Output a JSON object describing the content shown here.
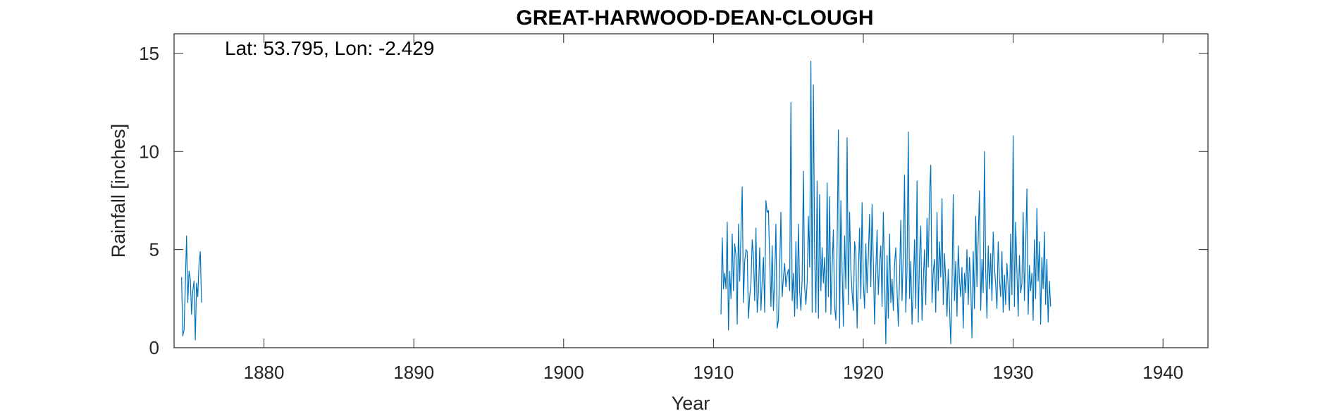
{
  "chart_data": {
    "type": "line",
    "title": "GREAT-HARWOOD-DEAN-CLOUGH",
    "xlabel": "Year",
    "ylabel": "Rainfall [inches]",
    "annotation": "Lat: 53.795, Lon: -2.429",
    "xlim": [
      1874,
      1943
    ],
    "ylim": [
      0,
      16
    ],
    "xticks": [
      1880,
      1890,
      1900,
      1910,
      1920,
      1930,
      1940
    ],
    "yticks": [
      0,
      5,
      10,
      15
    ],
    "grid": false,
    "color": "#0072BD",
    "series": [
      {
        "segments": [
          {
            "start": 1874.5,
            "step": 0.0833333,
            "values": [
              3.6,
              0.6,
              0.9,
              3.2,
              5.7,
              2.3,
              3.9,
              3.5,
              1.7,
              2.9,
              3.4,
              0.4,
              3.3,
              2.6,
              4.3,
              4.9,
              2.3
            ]
          },
          {
            "start": 1910.5,
            "step": 0.0833333,
            "values": [
              1.7,
              5.6,
              3.0,
              3.8,
              3.0,
              6.4,
              0.9,
              3.9,
              2.5,
              5.8,
              2.9,
              5.3,
              4.7,
              1.2,
              6.3,
              3.4,
              5.8,
              8.2,
              2.3,
              4.4,
              5.0,
              4.9,
              1.5,
              2.6,
              3.3,
              5.5,
              4.7,
              2.4,
              6.1,
              1.8,
              2.8,
              5.1,
              1.9,
              3.4,
              4.6,
              1.8,
              7.5,
              6.9,
              7.0,
              4.5,
              2.1,
              5.2,
              1.9,
              3.5,
              6.3,
              1.0,
              1.4,
              4.1,
              6.9,
              2.6,
              3.6,
              4.3,
              3.1,
              3.7,
              4.0,
              2.9,
              12.5,
              2.4,
              3.8,
              1.6,
              5.4,
              2.0,
              6.3,
              2.9,
              1.9,
              3.5,
              9.0,
              3.1,
              2.2,
              3.3,
              6.7,
              4.1,
              14.6,
              1.8,
              13.4,
              4.8,
              1.8,
              8.5,
              1.5,
              7.8,
              2.9,
              5.1,
              3.3,
              4.6,
              1.8,
              8.4,
              2.6,
              7.7,
              1.7,
              4.1,
              6.0,
              2.1,
              1.4,
              5.2,
              11.1,
              1.0,
              7.5,
              3.9,
              1.1,
              5.7,
              3.0,
              10.7,
              2.2,
              6.9,
              4.0,
              2.8,
              1.9,
              5.4,
              4.9,
              1.0,
              3.7,
              6.1,
              2.5,
              7.4,
              3.3,
              2.0,
              5.3,
              2.8,
              4.7,
              6.8,
              3.1,
              7.3,
              4.4,
              1.2,
              3.9,
              6.0,
              2.7,
              4.3,
              5.2,
              2.1,
              6.9,
              3.8,
              0.2,
              4.7,
              1.5,
              5.8,
              2.3,
              3.5,
              1.9,
              4.2,
              5.1,
              2.9,
              1.1,
              3.6,
              6.5,
              2.4,
              4.8,
              8.8,
              1.8,
              4.0,
              11.0,
              2.5,
              4.4,
              1.2,
              3.1,
              5.5,
              2.0,
              8.5,
              1.3,
              4.6,
              6.2,
              1.4,
              3.4,
              5.0,
              2.2,
              6.6,
              4.1,
              7.7,
              9.3,
              2.3,
              3.9,
              4.5,
              1.8,
              6.9,
              2.9,
              5.4,
              3.6,
              7.6,
              2.2,
              4.8,
              3.4,
              1.6,
              4.0,
              2.1,
              0.2,
              3.1,
              7.8,
              2.4,
              4.4,
              1.6,
              5.2,
              3.5,
              2.6,
              4.1,
              1.0,
              3.8,
              2.8,
              5.0,
              2.2,
              4.6,
              3.3,
              0.5,
              4.9,
              2.0,
              6.7,
              3.1,
              5.6,
              8.0,
              1.9,
              4.5,
              2.8,
              10.0,
              3.9,
              1.5,
              5.2,
              3.0,
              4.8,
              2.4,
              5.9,
              4.1,
              3.2,
              2.0,
              5.4,
              3.5,
              2.6,
              4.9,
              1.8,
              3.7,
              2.2,
              4.3,
              3.1,
              1.9,
              5.8,
              2.7,
              10.8,
              2.1,
              6.4,
              3.9,
              1.6,
              4.7,
              2.8,
              3.3,
              6.9,
              2.4,
              5.1,
              8.1,
              1.7,
              4.2,
              2.9,
              3.8,
              1.4,
              5.5,
              2.5,
              7.1,
              3.4,
              5.4,
              1.2,
              4.6,
              3.0,
              5.9,
              2.2,
              4.5,
              1.3,
              3.4,
              2.1
            ]
          }
        ]
      }
    ]
  }
}
